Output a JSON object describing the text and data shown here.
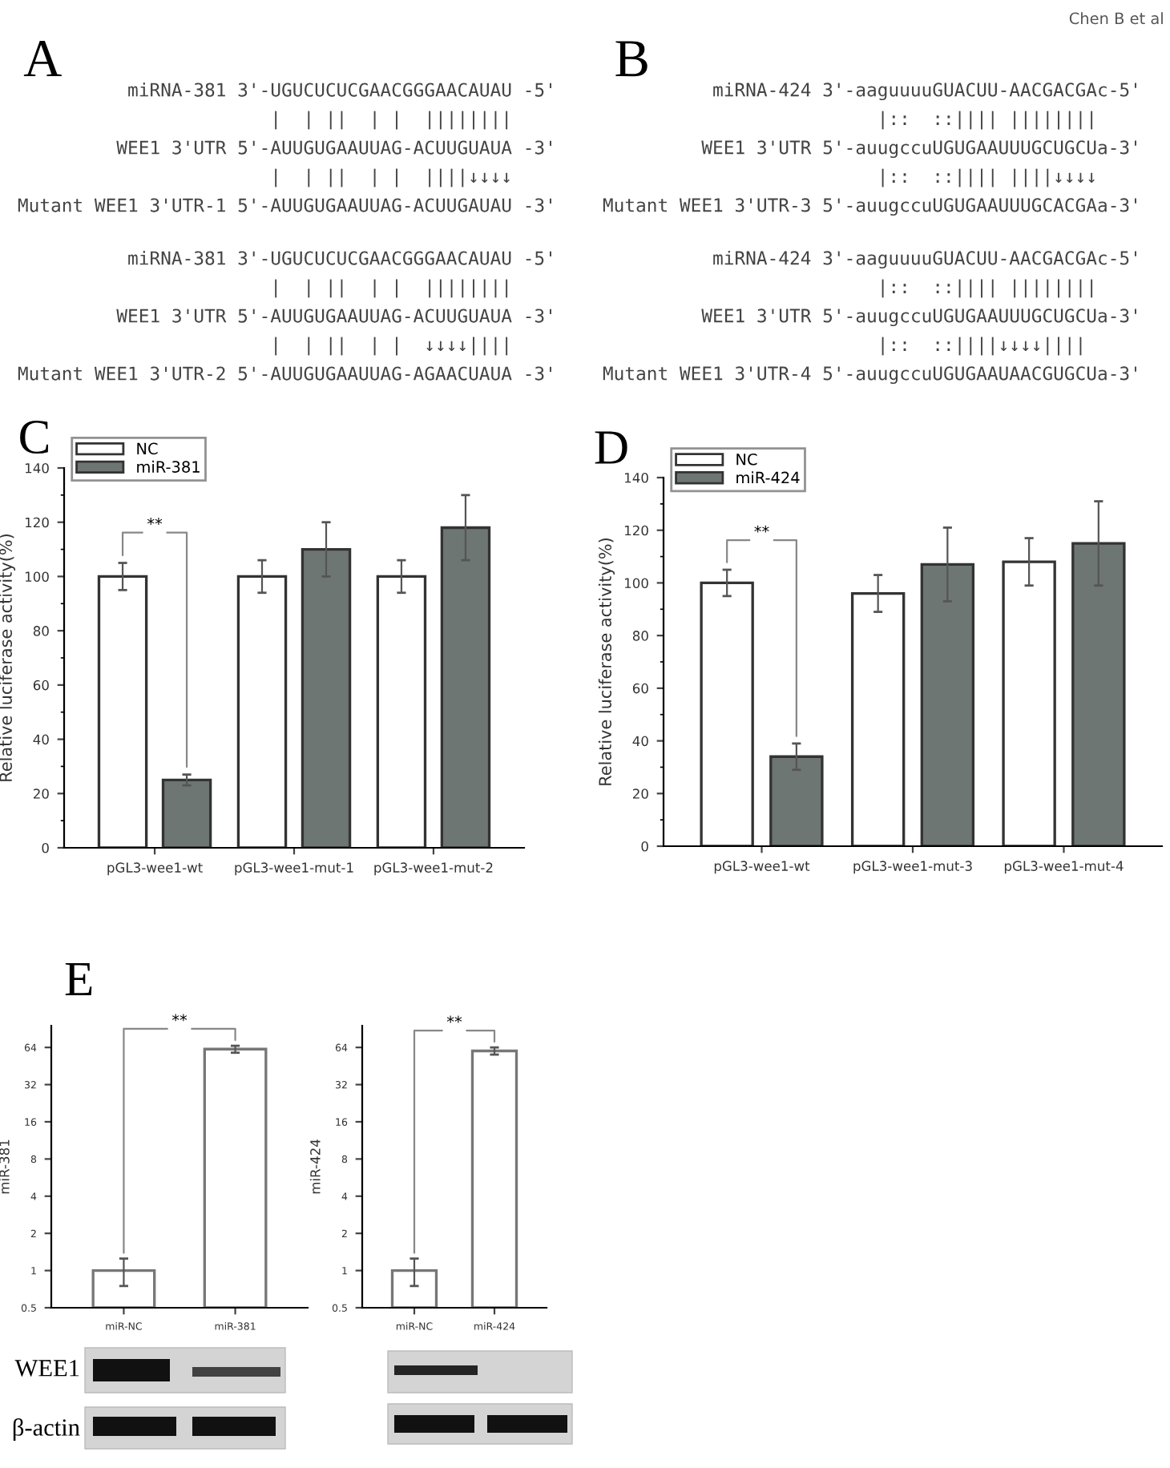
{
  "chart_data": [
    {
      "type": "other",
      "title": "A",
      "annotations": [
        "          miRNA-381 3'-UGUCUCUCGAACGGGAACAUAU -5'",
        "                       |  | ||  | |  ||||||||",
        "         WEE1 3'UTR 5'-AUUGUGAAUUAG-ACUUGUAUA -3'",
        "                       |  | ||  | |  ||||↓↓↓↓",
        "Mutant WEE1 3'UTR-1 5'-AUUGUGAAUUAG-ACUUGAUAU -3'",
        "          miRNA-381 3'-UGUCUCUCGAACGGGAACAUAU -5'",
        "                       |  | ||  | |  ||||||||",
        "         WEE1 3'UTR 5'-AUUGUGAAUUAG-ACUUGUAUA -3'",
        "                       |  | ||  | |  ↓↓↓↓||||",
        "Mutant WEE1 3'UTR-2 5'-AUUGUGAAUUAG-AGAACUAUA -3'"
      ]
    },
    {
      "type": "other",
      "title": "B",
      "subtitle": "Chen B et al",
      "annotations": [
        "          miRNA-424 3'-aaguuuuGUACUU-AACGACGAc-5'",
        "                         |::  ::|||| ||||||||",
        "         WEE1 3'UTR 5'-auugccuUGUGAAUUUGCUGCUa-3'",
        "                         |::  ::|||| ||||↓↓↓↓",
        "Mutant WEE1 3'UTR-3 5'-auugccuUGUGAAUUUGCACGAa-3'",
        "          miRNA-424 3'-aaguuuuGUACUU-AACGACGAc-5'",
        "                         |::  ::|||| ||||||||",
        "         WEE1 3'UTR 5'-auugccuUGUGAAUUUGCUGCUa-3'",
        "                         |::  ::||||↓↓↓↓||||",
        "Mutant WEE1 3'UTR-4 5'-auugccuUGUGAAUAACGUGCUa-3'"
      ]
    },
    {
      "type": "bar",
      "title": "C",
      "ylabel": "Relative luciferase activity(%)",
      "categories": [
        "pGL3-wee1-wt",
        "pGL3-wee1-mut-1",
        "pGL3-wee1-mut-2"
      ],
      "series": [
        {
          "name": "NC",
          "color": "#ffffff",
          "values": [
            100,
            100,
            100
          ],
          "errors": [
            5,
            6,
            6
          ]
        },
        {
          "name": "miR-381",
          "color": "#6e7673",
          "values": [
            25,
            110,
            118
          ],
          "errors": [
            2,
            10,
            12
          ]
        }
      ],
      "ylim": [
        0,
        140
      ],
      "yticks": [
        0,
        20,
        40,
        60,
        80,
        100,
        120,
        140
      ],
      "legend": "top left",
      "annotations": [
        "**"
      ]
    },
    {
      "type": "bar",
      "title": "D",
      "ylabel": "Relative luciferase activity(%)",
      "categories": [
        "pGL3-wee1-wt",
        "pGL3-wee1-mut-3",
        "pGL3-wee1-mut-4"
      ],
      "series": [
        {
          "name": "NC",
          "color": "#ffffff",
          "values": [
            100,
            96,
            108
          ],
          "errors": [
            5,
            7,
            9
          ]
        },
        {
          "name": "miR-424",
          "color": "#6e7673",
          "values": [
            34,
            107,
            115
          ],
          "errors": [
            5,
            14,
            16
          ]
        }
      ],
      "ylim": [
        0,
        140
      ],
      "yticks": [
        0,
        20,
        40,
        60,
        80,
        100,
        120,
        140
      ],
      "legend": "top left",
      "annotations": [
        "**"
      ]
    },
    {
      "type": "bar",
      "title": "E",
      "ylabel": "miR-381",
      "categories": [
        "miR-NC",
        "miR-381"
      ],
      "values": [
        1,
        62
      ],
      "errors": [
        0.25,
        4
      ],
      "color": "#ffffff",
      "log": true,
      "ylim": [
        0.5,
        96
      ],
      "yticks": [
        0.5,
        1,
        2,
        4,
        8,
        16,
        32,
        64
      ],
      "annotations": [
        {
          "text": "**",
          "x": "miR-381",
          "y": 66
        },
        "WEE1",
        "β-actin"
      ]
    },
    {
      "type": "bar",
      "ylabel": "miR-424",
      "categories": [
        "miR-NC",
        "miR-424"
      ],
      "values": [
        1,
        60
      ],
      "errors": [
        0.25,
        4
      ],
      "color": "#ffffff",
      "log": true,
      "ylim": [
        0.5,
        96
      ],
      "yticks": [
        0.5,
        1,
        2,
        4,
        8,
        16,
        32,
        64
      ],
      "annotations": [
        {
          "text": "**",
          "x": "miR-424",
          "y": 64
        }
      ]
    }
  ]
}
